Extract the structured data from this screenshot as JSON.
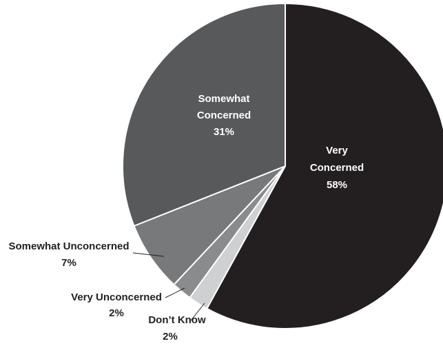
{
  "chart_data": {
    "type": "pie",
    "slices": [
      {
        "label": "Very Concerned",
        "value": 58,
        "value_label": "58%",
        "color": "#231f20"
      },
      {
        "label": "Don’t Know",
        "value": 2,
        "value_label": "2%",
        "color": "#cfd0d2"
      },
      {
        "label": "Very Unconcerned",
        "value": 2,
        "value_label": "2%",
        "color": "#8a8b8d"
      },
      {
        "label": "Somewhat Unconcerned",
        "value": 7,
        "value_label": "7%",
        "color": "#78797b"
      },
      {
        "label": "Somewhat Concerned",
        "value": 31,
        "value_label": "31%",
        "color": "#58595b"
      }
    ],
    "start": "top",
    "direction": "clockwise",
    "inside_label_color": "#ffffff",
    "outside_label_color": "#231f20"
  }
}
